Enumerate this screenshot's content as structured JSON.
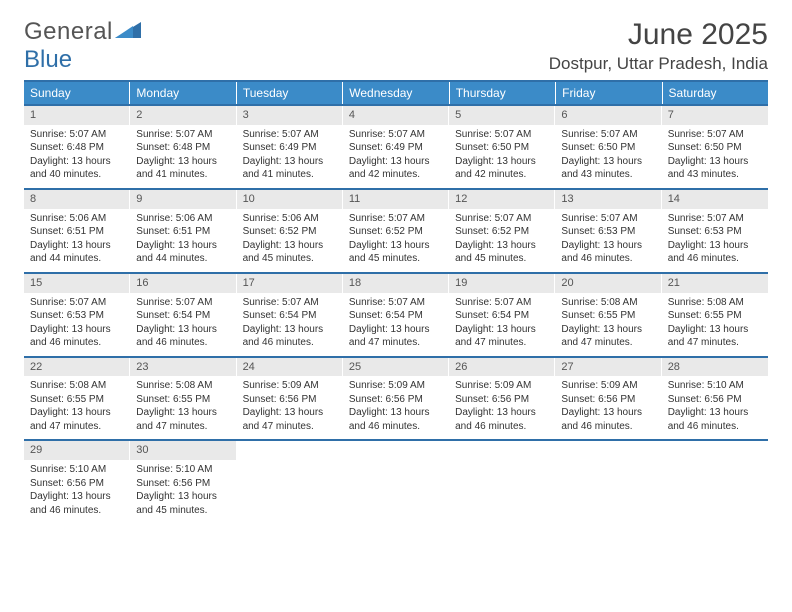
{
  "colors": {
    "header_bar": "#3b8bc8",
    "week_border": "#2f6fa8",
    "daynum_bg": "#e9e9e9",
    "text": "#333333",
    "title": "#444444",
    "logo_gray": "#555555",
    "logo_blue": "#2f6fa8"
  },
  "logo": {
    "word1": "General",
    "word2": "Blue"
  },
  "title": "June 2025",
  "subtitle": "Dostpur, Uttar Pradesh, India",
  "days_of_week": [
    "Sunday",
    "Monday",
    "Tuesday",
    "Wednesday",
    "Thursday",
    "Friday",
    "Saturday"
  ],
  "weeks": [
    [
      {
        "n": "1",
        "sr": "Sunrise: 5:07 AM",
        "ss": "Sunset: 6:48 PM",
        "d1": "Daylight: 13 hours",
        "d2": "and 40 minutes."
      },
      {
        "n": "2",
        "sr": "Sunrise: 5:07 AM",
        "ss": "Sunset: 6:48 PM",
        "d1": "Daylight: 13 hours",
        "d2": "and 41 minutes."
      },
      {
        "n": "3",
        "sr": "Sunrise: 5:07 AM",
        "ss": "Sunset: 6:49 PM",
        "d1": "Daylight: 13 hours",
        "d2": "and 41 minutes."
      },
      {
        "n": "4",
        "sr": "Sunrise: 5:07 AM",
        "ss": "Sunset: 6:49 PM",
        "d1": "Daylight: 13 hours",
        "d2": "and 42 minutes."
      },
      {
        "n": "5",
        "sr": "Sunrise: 5:07 AM",
        "ss": "Sunset: 6:50 PM",
        "d1": "Daylight: 13 hours",
        "d2": "and 42 minutes."
      },
      {
        "n": "6",
        "sr": "Sunrise: 5:07 AM",
        "ss": "Sunset: 6:50 PM",
        "d1": "Daylight: 13 hours",
        "d2": "and 43 minutes."
      },
      {
        "n": "7",
        "sr": "Sunrise: 5:07 AM",
        "ss": "Sunset: 6:50 PM",
        "d1": "Daylight: 13 hours",
        "d2": "and 43 minutes."
      }
    ],
    [
      {
        "n": "8",
        "sr": "Sunrise: 5:06 AM",
        "ss": "Sunset: 6:51 PM",
        "d1": "Daylight: 13 hours",
        "d2": "and 44 minutes."
      },
      {
        "n": "9",
        "sr": "Sunrise: 5:06 AM",
        "ss": "Sunset: 6:51 PM",
        "d1": "Daylight: 13 hours",
        "d2": "and 44 minutes."
      },
      {
        "n": "10",
        "sr": "Sunrise: 5:06 AM",
        "ss": "Sunset: 6:52 PM",
        "d1": "Daylight: 13 hours",
        "d2": "and 45 minutes."
      },
      {
        "n": "11",
        "sr": "Sunrise: 5:07 AM",
        "ss": "Sunset: 6:52 PM",
        "d1": "Daylight: 13 hours",
        "d2": "and 45 minutes."
      },
      {
        "n": "12",
        "sr": "Sunrise: 5:07 AM",
        "ss": "Sunset: 6:52 PM",
        "d1": "Daylight: 13 hours",
        "d2": "and 45 minutes."
      },
      {
        "n": "13",
        "sr": "Sunrise: 5:07 AM",
        "ss": "Sunset: 6:53 PM",
        "d1": "Daylight: 13 hours",
        "d2": "and 46 minutes."
      },
      {
        "n": "14",
        "sr": "Sunrise: 5:07 AM",
        "ss": "Sunset: 6:53 PM",
        "d1": "Daylight: 13 hours",
        "d2": "and 46 minutes."
      }
    ],
    [
      {
        "n": "15",
        "sr": "Sunrise: 5:07 AM",
        "ss": "Sunset: 6:53 PM",
        "d1": "Daylight: 13 hours",
        "d2": "and 46 minutes."
      },
      {
        "n": "16",
        "sr": "Sunrise: 5:07 AM",
        "ss": "Sunset: 6:54 PM",
        "d1": "Daylight: 13 hours",
        "d2": "and 46 minutes."
      },
      {
        "n": "17",
        "sr": "Sunrise: 5:07 AM",
        "ss": "Sunset: 6:54 PM",
        "d1": "Daylight: 13 hours",
        "d2": "and 46 minutes."
      },
      {
        "n": "18",
        "sr": "Sunrise: 5:07 AM",
        "ss": "Sunset: 6:54 PM",
        "d1": "Daylight: 13 hours",
        "d2": "and 47 minutes."
      },
      {
        "n": "19",
        "sr": "Sunrise: 5:07 AM",
        "ss": "Sunset: 6:54 PM",
        "d1": "Daylight: 13 hours",
        "d2": "and 47 minutes."
      },
      {
        "n": "20",
        "sr": "Sunrise: 5:08 AM",
        "ss": "Sunset: 6:55 PM",
        "d1": "Daylight: 13 hours",
        "d2": "and 47 minutes."
      },
      {
        "n": "21",
        "sr": "Sunrise: 5:08 AM",
        "ss": "Sunset: 6:55 PM",
        "d1": "Daylight: 13 hours",
        "d2": "and 47 minutes."
      }
    ],
    [
      {
        "n": "22",
        "sr": "Sunrise: 5:08 AM",
        "ss": "Sunset: 6:55 PM",
        "d1": "Daylight: 13 hours",
        "d2": "and 47 minutes."
      },
      {
        "n": "23",
        "sr": "Sunrise: 5:08 AM",
        "ss": "Sunset: 6:55 PM",
        "d1": "Daylight: 13 hours",
        "d2": "and 47 minutes."
      },
      {
        "n": "24",
        "sr": "Sunrise: 5:09 AM",
        "ss": "Sunset: 6:56 PM",
        "d1": "Daylight: 13 hours",
        "d2": "and 47 minutes."
      },
      {
        "n": "25",
        "sr": "Sunrise: 5:09 AM",
        "ss": "Sunset: 6:56 PM",
        "d1": "Daylight: 13 hours",
        "d2": "and 46 minutes."
      },
      {
        "n": "26",
        "sr": "Sunrise: 5:09 AM",
        "ss": "Sunset: 6:56 PM",
        "d1": "Daylight: 13 hours",
        "d2": "and 46 minutes."
      },
      {
        "n": "27",
        "sr": "Sunrise: 5:09 AM",
        "ss": "Sunset: 6:56 PM",
        "d1": "Daylight: 13 hours",
        "d2": "and 46 minutes."
      },
      {
        "n": "28",
        "sr": "Sunrise: 5:10 AM",
        "ss": "Sunset: 6:56 PM",
        "d1": "Daylight: 13 hours",
        "d2": "and 46 minutes."
      }
    ],
    [
      {
        "n": "29",
        "sr": "Sunrise: 5:10 AM",
        "ss": "Sunset: 6:56 PM",
        "d1": "Daylight: 13 hours",
        "d2": "and 46 minutes."
      },
      {
        "n": "30",
        "sr": "Sunrise: 5:10 AM",
        "ss": "Sunset: 6:56 PM",
        "d1": "Daylight: 13 hours",
        "d2": "and 45 minutes."
      },
      {
        "empty": true
      },
      {
        "empty": true
      },
      {
        "empty": true
      },
      {
        "empty": true
      },
      {
        "empty": true
      }
    ]
  ]
}
